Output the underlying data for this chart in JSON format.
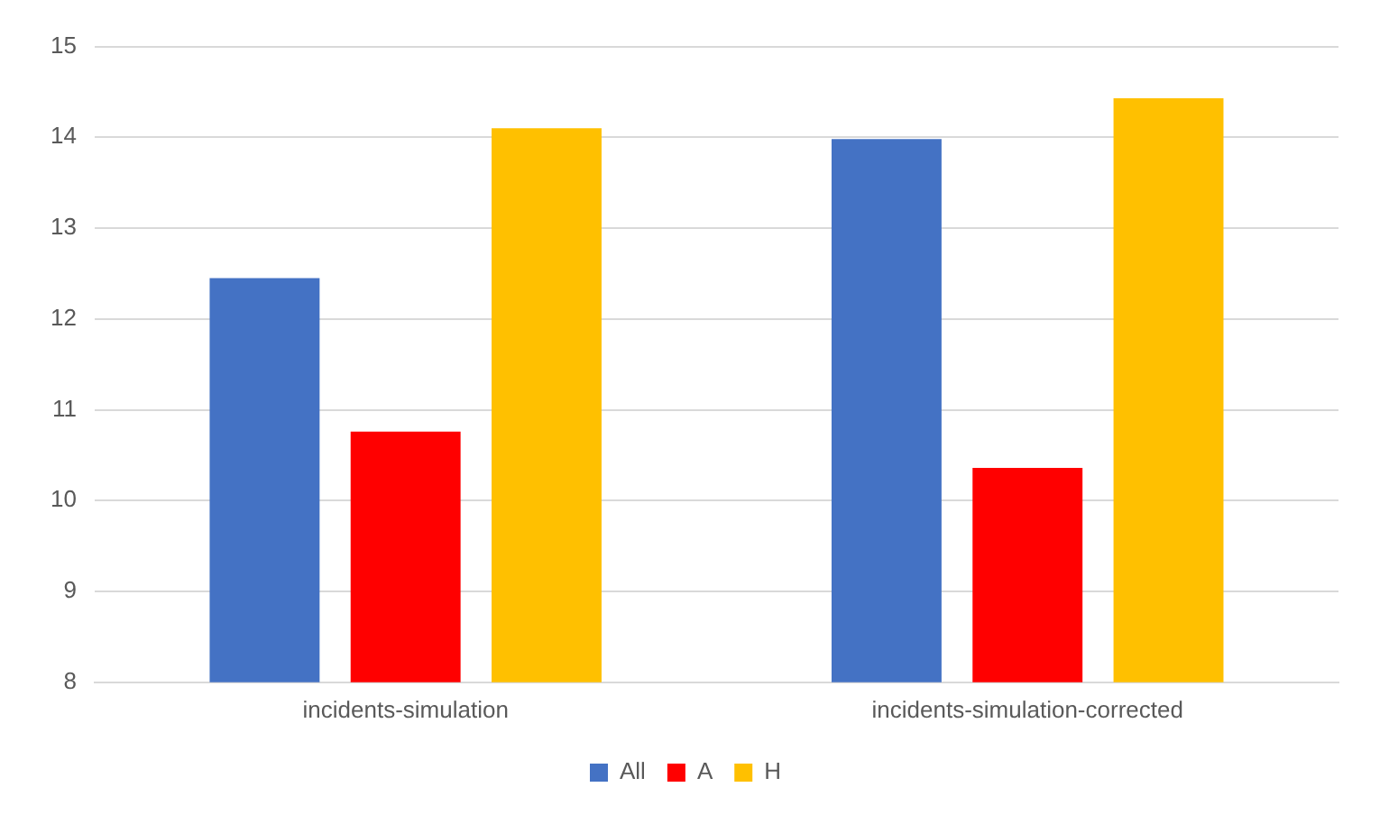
{
  "chart_data": {
    "type": "bar",
    "categories": [
      "incidents-simulation",
      "incidents-simulation-corrected"
    ],
    "series": [
      {
        "name": "All",
        "color": "#4472c4",
        "values": [
          12.45,
          13.98
        ]
      },
      {
        "name": "A",
        "color": "#ff0000",
        "values": [
          10.76,
          10.36
        ]
      },
      {
        "name": "H",
        "color": "#ffc000",
        "values": [
          14.1,
          14.43
        ]
      }
    ],
    "ylim": [
      8,
      15
    ],
    "yticks": [
      8,
      9,
      10,
      11,
      12,
      13,
      14,
      15
    ],
    "grid": "y",
    "legend": "bottom"
  }
}
